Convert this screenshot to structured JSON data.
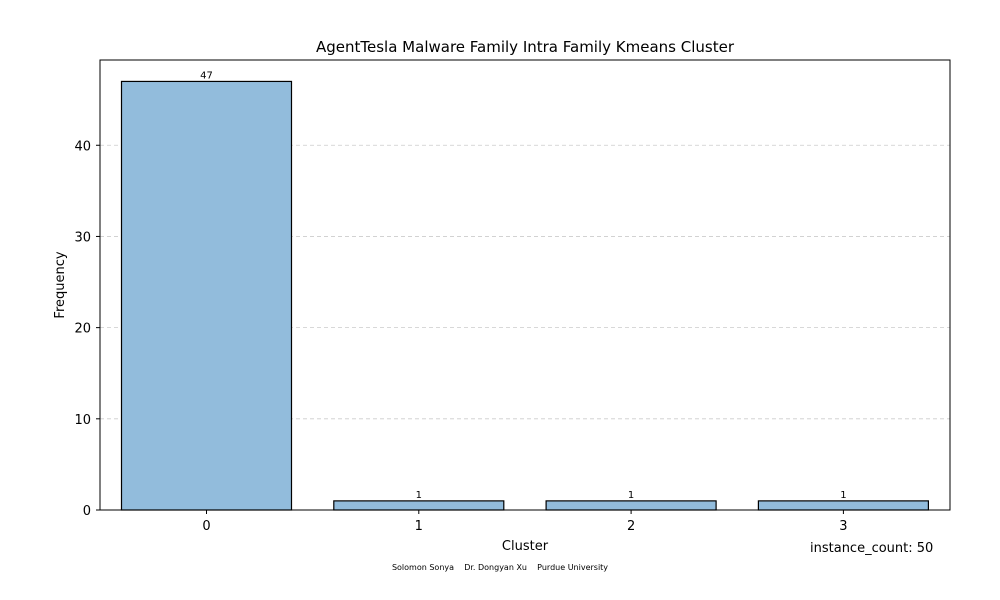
{
  "chart_data": {
    "type": "bar",
    "title": "AgentTesla Malware Family Intra Family Kmeans Cluster",
    "xlabel": "Cluster",
    "ylabel": "Frequency",
    "categories": [
      "0",
      "1",
      "2",
      "3"
    ],
    "values": [
      47,
      1,
      1,
      1
    ],
    "ylim": [
      0,
      49.35
    ],
    "yticks": [
      0,
      10,
      20,
      30,
      40
    ],
    "grid": "y-dashed",
    "bar_color": "#92bcdc",
    "bar_edge_color": "#000000",
    "grid_color": "#cccccc"
  },
  "annotations": {
    "instance_count": "instance_count: 50",
    "credits": "Solomon Sonya    Dr. Dongyan Xu    Purdue University"
  }
}
